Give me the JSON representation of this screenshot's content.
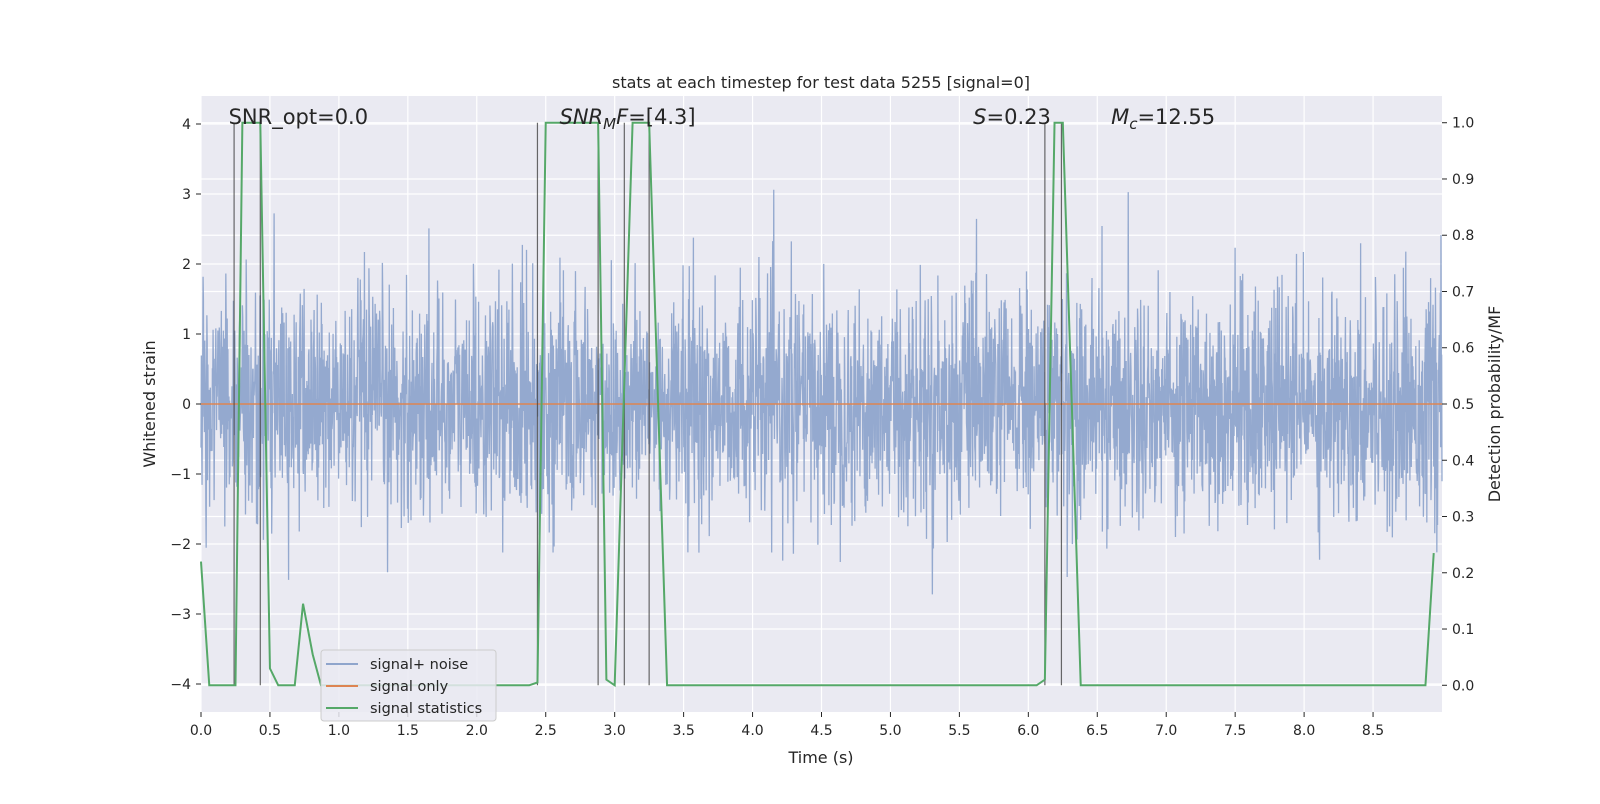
{
  "chart_data": {
    "type": "line",
    "title": "stats at each timestep for test data 5255 [signal=0]",
    "xlabel": "Time (s)",
    "ylabel_left": "Whitened strain",
    "ylabel_right": "Detection probability/MF",
    "xlim": [
      0.0,
      9.0
    ],
    "ylim_left": [
      -4.4,
      4.4
    ],
    "ylim_right": [
      -0.0475,
      1.0475
    ],
    "grid": true,
    "legend_position": "lower-left",
    "xticks": [
      "0.0",
      "0.5",
      "1.0",
      "1.5",
      "2.0",
      "2.5",
      "3.0",
      "3.5",
      "4.0",
      "4.5",
      "5.0",
      "5.5",
      "6.0",
      "6.5",
      "7.0",
      "7.5",
      "8.0",
      "8.5"
    ],
    "yticks_left": [
      "−4",
      "−3",
      "−2",
      "−1",
      "0",
      "1",
      "2",
      "3",
      "4"
    ],
    "yticks_right": [
      "0.0",
      "0.1",
      "0.2",
      "0.3",
      "0.4",
      "0.5",
      "0.6",
      "0.7",
      "0.8",
      "0.9",
      "1.0"
    ],
    "annotations": [
      {
        "text": "SNR_opt=0.0",
        "x": 0.2,
        "y": 4.0
      },
      {
        "text": "SNR_M F=[4.3]",
        "x": 2.6,
        "y": 4.0
      },
      {
        "text": "S=0.23",
        "x": 5.6,
        "y": 4.0
      },
      {
        "text": "M_c=12.55",
        "x": 6.6,
        "y": 4.0
      }
    ],
    "vertical_lines": [
      0.24,
      0.43,
      2.44,
      2.88,
      3.07,
      3.25,
      6.12,
      6.24
    ],
    "series": [
      {
        "name": "signal+ noise",
        "color": "#8fa5cc",
        "axis": "left",
        "noise_std": 0.8,
        "noise_peak_max": 3.9
      },
      {
        "name": "signal only",
        "color": "#dd8452",
        "axis": "left",
        "x": [
          0.0,
          9.0
        ],
        "y": [
          0.0,
          0.0
        ]
      },
      {
        "name": "signal statistics",
        "color": "#55a868",
        "axis": "right",
        "x": [
          0.0,
          0.06,
          0.25,
          0.3,
          0.43,
          0.5,
          0.56,
          0.68,
          0.74,
          0.81,
          0.87,
          2.38,
          2.44,
          2.5,
          2.88,
          2.94,
          3.0,
          3.13,
          3.25,
          3.38,
          6.06,
          6.12,
          6.19,
          6.25,
          6.38,
          7.5,
          7.7,
          8.88,
          8.94
        ],
        "y": [
          0.22,
          0.0,
          0.0,
          1.0,
          1.0,
          0.03,
          0.0,
          0.0,
          0.145,
          0.055,
          0.0,
          0.0,
          0.005,
          1.0,
          1.0,
          0.01,
          0.0,
          1.0,
          1.0,
          0.0,
          0.0,
          0.01,
          1.0,
          1.0,
          0.0,
          0.0,
          0.0,
          0.0,
          0.235
        ]
      }
    ]
  }
}
